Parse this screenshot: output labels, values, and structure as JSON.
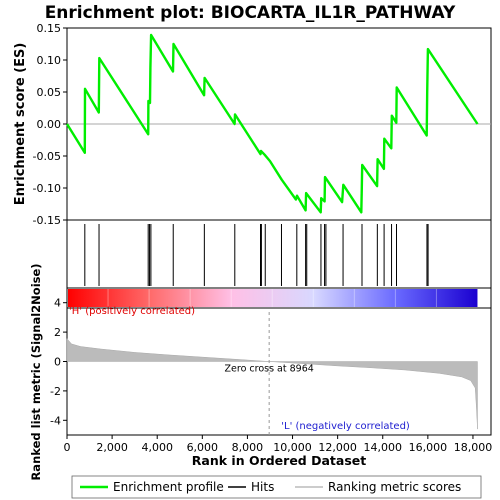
{
  "chart_data": {
    "type": "line",
    "title": "Enrichment plot: BIOCARTA_IL1R_PATHWAY",
    "es_panel": {
      "ylabel": "Enrichment score (ES)",
      "ylim": [
        -0.15,
        0.15
      ],
      "yticks": [
        "0.15",
        "0.10",
        "0.05",
        "0.00",
        "-0.05",
        "-0.10",
        "-0.15"
      ],
      "ytick_values": [
        0.15,
        0.1,
        0.05,
        0.0,
        -0.05,
        -0.1,
        -0.15
      ],
      "series_name": "Enrichment profile",
      "color": "#00ee00",
      "profile": [
        {
          "x": 0,
          "y": 0.0
        },
        {
          "x": 790,
          "y": -0.045
        },
        {
          "x": 800,
          "y": 0.055
        },
        {
          "x": 1410,
          "y": 0.018
        },
        {
          "x": 1430,
          "y": 0.103
        },
        {
          "x": 3600,
          "y": -0.016
        },
        {
          "x": 3610,
          "y": 0.036
        },
        {
          "x": 3680,
          "y": 0.033
        },
        {
          "x": 3700,
          "y": 0.088
        },
        {
          "x": 3730,
          "y": 0.139
        },
        {
          "x": 4700,
          "y": 0.082
        },
        {
          "x": 4720,
          "y": 0.125
        },
        {
          "x": 6080,
          "y": 0.045
        },
        {
          "x": 6100,
          "y": 0.072
        },
        {
          "x": 7430,
          "y": 0.0
        },
        {
          "x": 7450,
          "y": 0.015
        },
        {
          "x": 8580,
          "y": -0.047
        },
        {
          "x": 8600,
          "y": -0.042
        },
        {
          "x": 8760,
          "y": -0.048
        },
        {
          "x": 9000,
          "y": -0.058
        },
        {
          "x": 9520,
          "y": -0.087
        },
        {
          "x": 10150,
          "y": -0.118
        },
        {
          "x": 10200,
          "y": -0.112
        },
        {
          "x": 10580,
          "y": -0.135
        },
        {
          "x": 10600,
          "y": -0.108
        },
        {
          "x": 11250,
          "y": -0.138
        },
        {
          "x": 11270,
          "y": -0.116
        },
        {
          "x": 11420,
          "y": -0.121
        },
        {
          "x": 11440,
          "y": -0.083
        },
        {
          "x": 12200,
          "y": -0.122
        },
        {
          "x": 12250,
          "y": -0.095
        },
        {
          "x": 13050,
          "y": -0.138
        },
        {
          "x": 13070,
          "y": -0.1
        },
        {
          "x": 13090,
          "y": -0.064
        },
        {
          "x": 13750,
          "y": -0.097
        },
        {
          "x": 13770,
          "y": -0.055
        },
        {
          "x": 14050,
          "y": -0.07
        },
        {
          "x": 14070,
          "y": -0.023
        },
        {
          "x": 14380,
          "y": -0.038
        },
        {
          "x": 14400,
          "y": 0.013
        },
        {
          "x": 14600,
          "y": 0.002
        },
        {
          "x": 14620,
          "y": 0.057
        },
        {
          "x": 15950,
          "y": -0.018
        },
        {
          "x": 15970,
          "y": 0.05
        },
        {
          "x": 16000,
          "y": 0.117
        },
        {
          "x": 18200,
          "y": 0.0
        }
      ]
    },
    "hits": [
      790,
      1420,
      3600,
      3660,
      3720,
      4710,
      6090,
      7440,
      8580,
      8620,
      8790,
      9510,
      10190,
      10580,
      10630,
      11260,
      11420,
      11480,
      12240,
      13080,
      13760,
      14060,
      14390,
      14610,
      15960,
      16010
    ],
    "metric_panel": {
      "ylabel": "Ranked list metric (Signal2Noise)",
      "ylim": [
        -5,
        5
      ],
      "yticks": [
        "4",
        "2",
        "0",
        "-2",
        "-4"
      ],
      "ytick_values": [
        4,
        2,
        0,
        -2,
        -4
      ],
      "profile": [
        {
          "x": 0,
          "y": 1.55
        },
        {
          "x": 200,
          "y": 1.2
        },
        {
          "x": 600,
          "y": 1.02
        },
        {
          "x": 1500,
          "y": 0.85
        },
        {
          "x": 3000,
          "y": 0.62
        },
        {
          "x": 4500,
          "y": 0.45
        },
        {
          "x": 6000,
          "y": 0.3
        },
        {
          "x": 7500,
          "y": 0.15
        },
        {
          "x": 8964,
          "y": 0.0
        },
        {
          "x": 10500,
          "y": -0.15
        },
        {
          "x": 12000,
          "y": -0.3
        },
        {
          "x": 13500,
          "y": -0.43
        },
        {
          "x": 15000,
          "y": -0.58
        },
        {
          "x": 16500,
          "y": -0.8
        },
        {
          "x": 17500,
          "y": -1.05
        },
        {
          "x": 17900,
          "y": -1.3
        },
        {
          "x": 18100,
          "y": -1.8
        },
        {
          "x": 18150,
          "y": -3.0
        },
        {
          "x": 18200,
          "y": -4.6
        }
      ],
      "zero_cross_label": "Zero cross at 8964",
      "zero_cross_x": 8964,
      "pos_label": "'H' (positively correlated)",
      "neg_label": "'L' (negatively correlated)"
    },
    "xaxis": {
      "xlabel": "Rank in Ordered Dataset",
      "xlim": [
        0,
        18800
      ],
      "xticks": [
        "0",
        "2,000",
        "4,000",
        "6,000",
        "8,000",
        "10,000",
        "12,000",
        "14,000",
        "16,000",
        "18,000"
      ],
      "xtick_values": [
        0,
        2000,
        4000,
        6000,
        8000,
        10000,
        12000,
        14000,
        16000,
        18000
      ]
    },
    "colorbar": {
      "max_x": 18200,
      "stops": [
        "#ff0000",
        "#ff6a6a",
        "#ffc0e6",
        "#d8d8ff",
        "#6a6aff",
        "#1a00d0"
      ]
    },
    "legend": {
      "position": "bottom",
      "items": [
        {
          "label": "Enrichment profile",
          "color": "#00ee00"
        },
        {
          "label": "Hits",
          "color": "#000000"
        },
        {
          "label": "Ranking metric scores",
          "color": "#bbbbbb"
        }
      ]
    }
  }
}
